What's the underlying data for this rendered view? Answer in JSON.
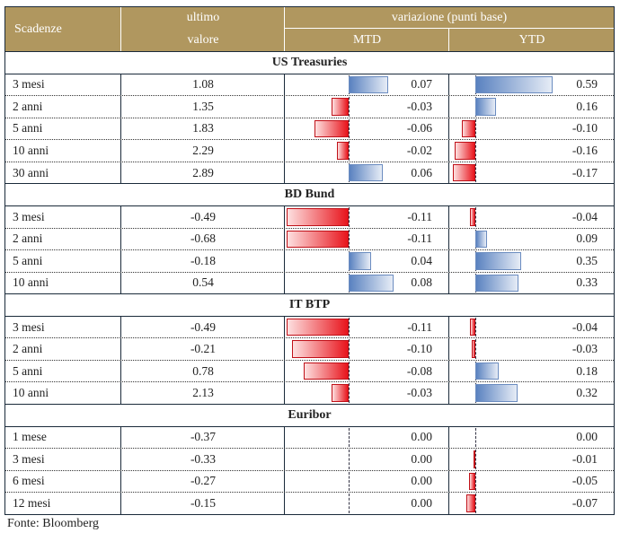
{
  "header": {
    "col1": "Scadenze",
    "col2_top": "ultimo",
    "col2_bottom": "valore",
    "group": "variazione (punti base)",
    "mtd": "MTD",
    "ytd": "YTD"
  },
  "colors": {
    "header_bg": "#B0975F",
    "positive": "#5a82c0",
    "negative": "#e8141c"
  },
  "sections": [
    {
      "title": "US Treasuries",
      "rows": [
        {
          "label": "3 mesi",
          "value": "1.08",
          "mtd": "0.07",
          "ytd": "0.59"
        },
        {
          "label": "2 anni",
          "value": "1.35",
          "mtd": "-0.03",
          "ytd": "0.16"
        },
        {
          "label": "5 anni",
          "value": "1.83",
          "mtd": "-0.06",
          "ytd": "-0.10"
        },
        {
          "label": "10 anni",
          "value": "2.29",
          "mtd": "-0.02",
          "ytd": "-0.16"
        },
        {
          "label": "30 anni",
          "value": "2.89",
          "mtd": "0.06",
          "ytd": "-0.17"
        }
      ]
    },
    {
      "title": "BD Bund",
      "rows": [
        {
          "label": "3 mesi",
          "value": "-0.49",
          "mtd": "-0.11",
          "ytd": "-0.04"
        },
        {
          "label": "2 anni",
          "value": "-0.68",
          "mtd": "-0.11",
          "ytd": "0.09"
        },
        {
          "label": "5 anni",
          "value": "-0.18",
          "mtd": "0.04",
          "ytd": "0.35"
        },
        {
          "label": "10 anni",
          "value": "0.54",
          "mtd": "0.08",
          "ytd": "0.33"
        }
      ]
    },
    {
      "title": "IT BTP",
      "rows": [
        {
          "label": "3 mesi",
          "value": "-0.49",
          "mtd": "-0.11",
          "ytd": "-0.04"
        },
        {
          "label": "2 anni",
          "value": "-0.21",
          "mtd": "-0.10",
          "ytd": "-0.03"
        },
        {
          "label": "5 anni",
          "value": "0.78",
          "mtd": "-0.08",
          "ytd": "0.18"
        },
        {
          "label": "10 anni",
          "value": "2.13",
          "mtd": "-0.03",
          "ytd": "0.32"
        }
      ]
    },
    {
      "title": "Euribor",
      "rows": [
        {
          "label": "1 mese",
          "value": "-0.37",
          "mtd": "0.00",
          "ytd": "0.00"
        },
        {
          "label": "3 mesi",
          "value": "-0.33",
          "mtd": "0.00",
          "ytd": "-0.01"
        },
        {
          "label": "6 mesi",
          "value": "-0.27",
          "mtd": "0.00",
          "ytd": "-0.05"
        },
        {
          "label": "12 mesi",
          "value": "-0.15",
          "mtd": "0.00",
          "ytd": "-0.07"
        }
      ]
    }
  ],
  "footer": "Fonte: Bloomberg"
}
